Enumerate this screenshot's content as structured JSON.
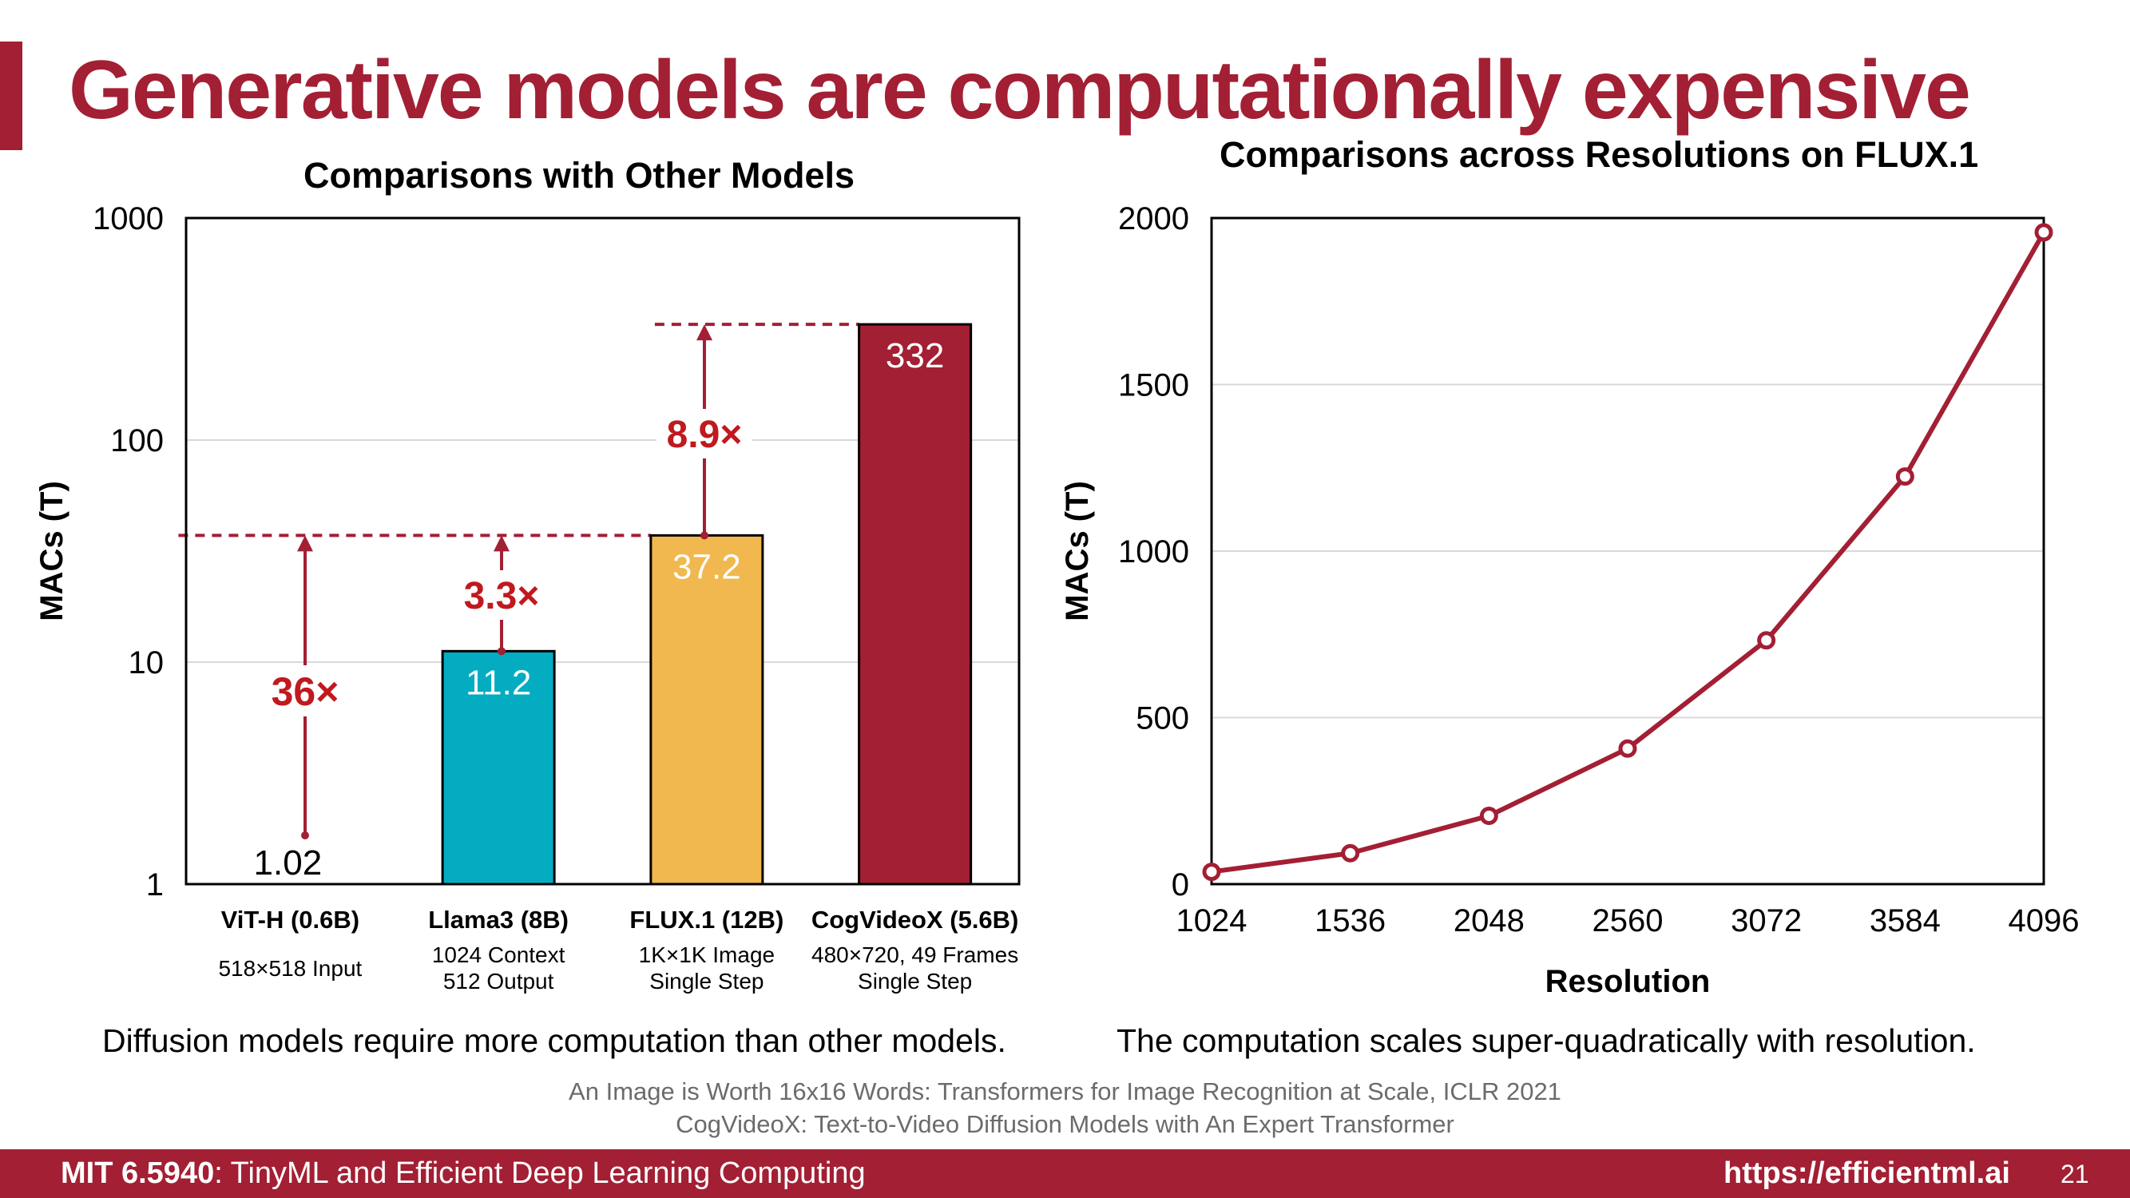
{
  "slide": {
    "title": "Generative models are computationally expensive",
    "caption_left": "Diffusion models require more computation than other models.",
    "caption_right": "The computation scales super-quadratically with resolution.",
    "references": [
      "An Image is Worth 16x16 Words: Transformers for Image Recognition at Scale, ICLR 2021",
      "CogVideoX: Text-to-Video Diffusion Models with An Expert Transformer"
    ],
    "footer": {
      "course_code": "MIT 6.5940",
      "course_name": ": TinyML and Efficient Deep Learning Computing",
      "url": "https://efficientml.ai",
      "page": "21"
    },
    "accent_color": "#a31f34"
  },
  "chart_data": [
    {
      "type": "bar",
      "title": "Comparisons with Other Models",
      "ylabel": "MACs (T)",
      "xlabel": "",
      "yscale": "log",
      "ylim": [
        1,
        1000
      ],
      "yticks": [
        "1",
        "10",
        "100",
        "1000"
      ],
      "grid": true,
      "categories": [
        "ViT-H (0.6B)",
        "Llama3 (8B)",
        "FLUX.1 (12B)",
        "CogVideoX (5.6B)"
      ],
      "category_notes": [
        "518×518 Input",
        "1024 Context\n512 Output",
        "1K×1K Image\nSingle Step",
        "480×720, 49 Frames\nSingle Step"
      ],
      "values": [
        1.02,
        11.2,
        37.2,
        332
      ],
      "value_labels": [
        "1.02",
        "11.2",
        "37.2",
        "332"
      ],
      "colors": [
        "#ffffff",
        "#04acc1",
        "#f0b84e",
        "#a31f34"
      ],
      "annotations": [
        {
          "label": "36×",
          "from": 1.02,
          "to": 37.2
        },
        {
          "label": "3.3×",
          "from": 11.2,
          "to": 37.2
        },
        {
          "label": "8.9×",
          "from": 37.2,
          "to": 332
        }
      ]
    },
    {
      "type": "line",
      "title": "Comparisons across Resolutions on FLUX.1",
      "xlabel": "Resolution",
      "ylabel": "MACs (T)",
      "x": [
        1024,
        1536,
        2048,
        2560,
        3072,
        3584,
        4096
      ],
      "xticks": [
        "1024",
        "1536",
        "2048",
        "2560",
        "3072",
        "3584",
        "4096"
      ],
      "y": [
        37,
        93,
        205,
        407,
        732,
        1224,
        1957
      ],
      "ylim": [
        0,
        2000
      ],
      "yticks": [
        "0",
        "500",
        "1000",
        "1500",
        "2000"
      ],
      "grid": true,
      "line_color": "#a31f34"
    }
  ]
}
